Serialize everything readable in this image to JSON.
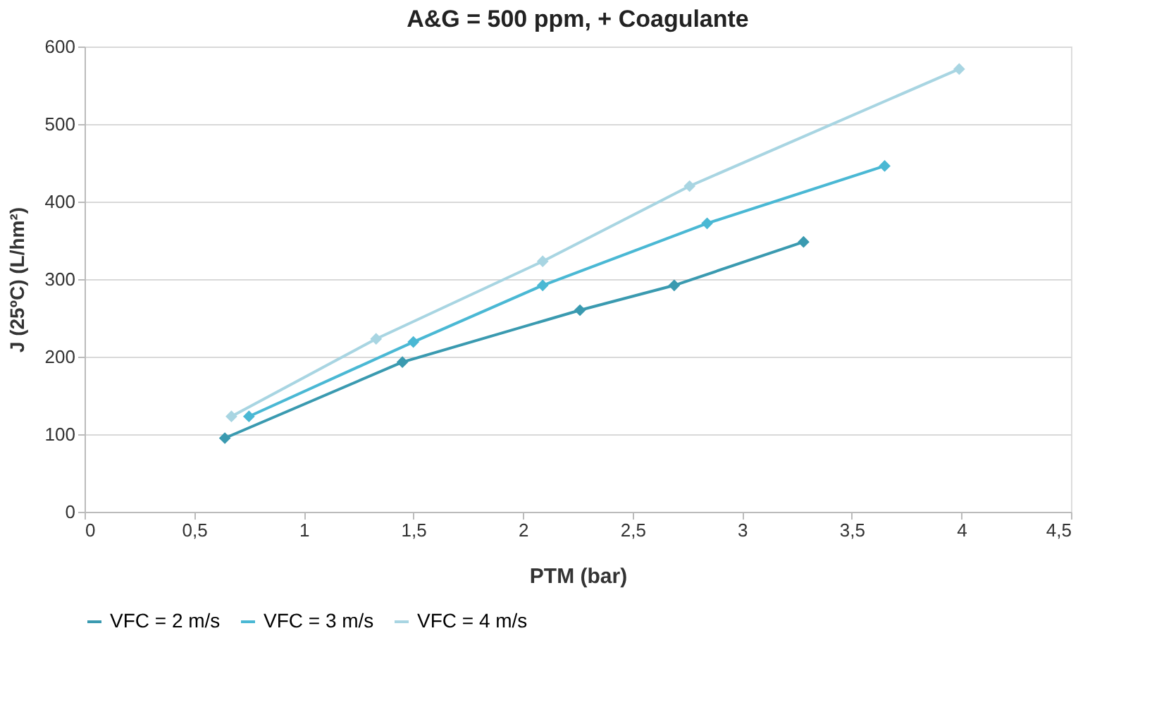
{
  "chart_data": {
    "type": "line",
    "title": "A&G = 500 ppm, + Coagulante",
    "xlabel": "PTM (bar)",
    "ylabel": "J (25ºC) (L/hm²)",
    "xlim": [
      0,
      4.5
    ],
    "xticks": [
      0,
      {
        "value": 0.5,
        "label": "0,5"
      },
      1,
      {
        "value": 1.5,
        "label": "1,5"
      },
      2,
      {
        "value": 2.5,
        "label": "2,5"
      },
      3,
      {
        "value": 3.5,
        "label": "3,5"
      },
      4,
      {
        "value": 4.5,
        "label": "4,5"
      }
    ],
    "ylim": [
      0,
      600
    ],
    "yticks": [
      0,
      100,
      200,
      300,
      400,
      500,
      600
    ],
    "grid": "y",
    "legend": "bottom",
    "marker": "diamond",
    "line_style": "solid",
    "series": [
      {
        "name": "VFC = 2 m/s",
        "color": "#3a9ab0",
        "x": [
          0.64,
          1.45,
          2.26,
          2.69,
          3.28
        ],
        "values": [
          95,
          193,
          260,
          292,
          348
        ]
      },
      {
        "name": "VFC = 3 m/s",
        "color": "#4ab8d4",
        "x": [
          0.75,
          1.5,
          2.09,
          2.84,
          3.65
        ],
        "values": [
          123,
          219,
          292,
          372,
          446
        ]
      },
      {
        "name": "VFC = 4 m/s",
        "color": "#a8d5e2",
        "x": [
          0.67,
          1.33,
          2.09,
          2.76,
          3.99
        ],
        "values": [
          123,
          223,
          323,
          420,
          571
        ]
      }
    ]
  }
}
